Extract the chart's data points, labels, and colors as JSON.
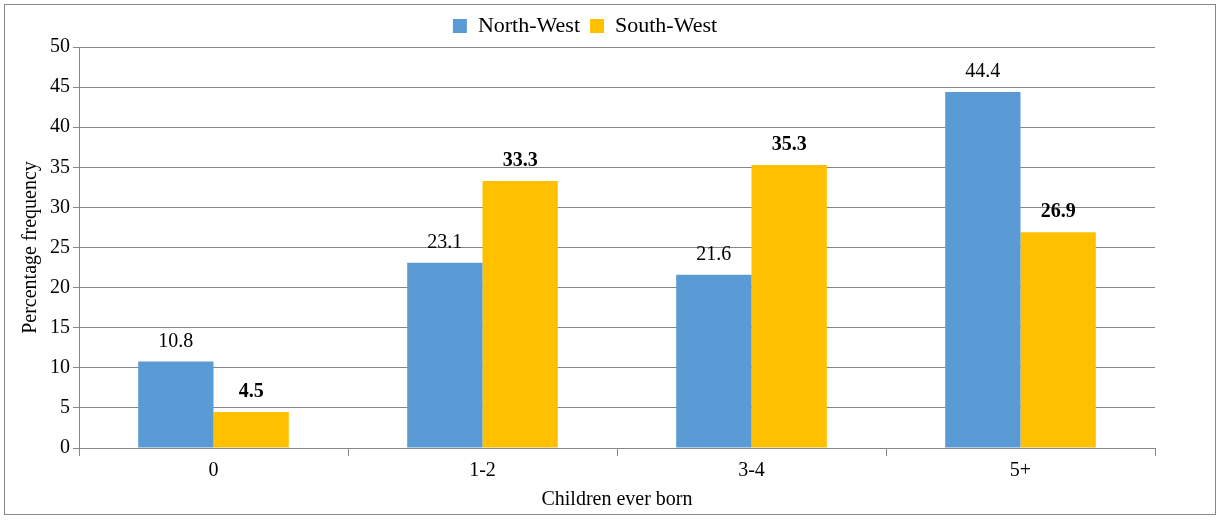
{
  "chart_data": {
    "type": "bar",
    "xlabel": "Children ever born",
    "ylabel": "Percentage frequency",
    "categories": [
      "0",
      "1-2",
      "3-4",
      "5+"
    ],
    "series": [
      {
        "name": "North-West",
        "color": "#5b9bd5",
        "values": [
          10.8,
          23.1,
          21.6,
          44.4
        ]
      },
      {
        "name": "South-West",
        "color": "#ffc000",
        "values": [
          4.5,
          33.3,
          35.3,
          26.9
        ]
      }
    ],
    "ylim": [
      0,
      50
    ],
    "yticks": [
      0,
      5,
      10,
      15,
      20,
      25,
      30,
      35,
      40,
      45,
      50
    ],
    "grid": "y",
    "legend": "top",
    "data_labels": true
  }
}
